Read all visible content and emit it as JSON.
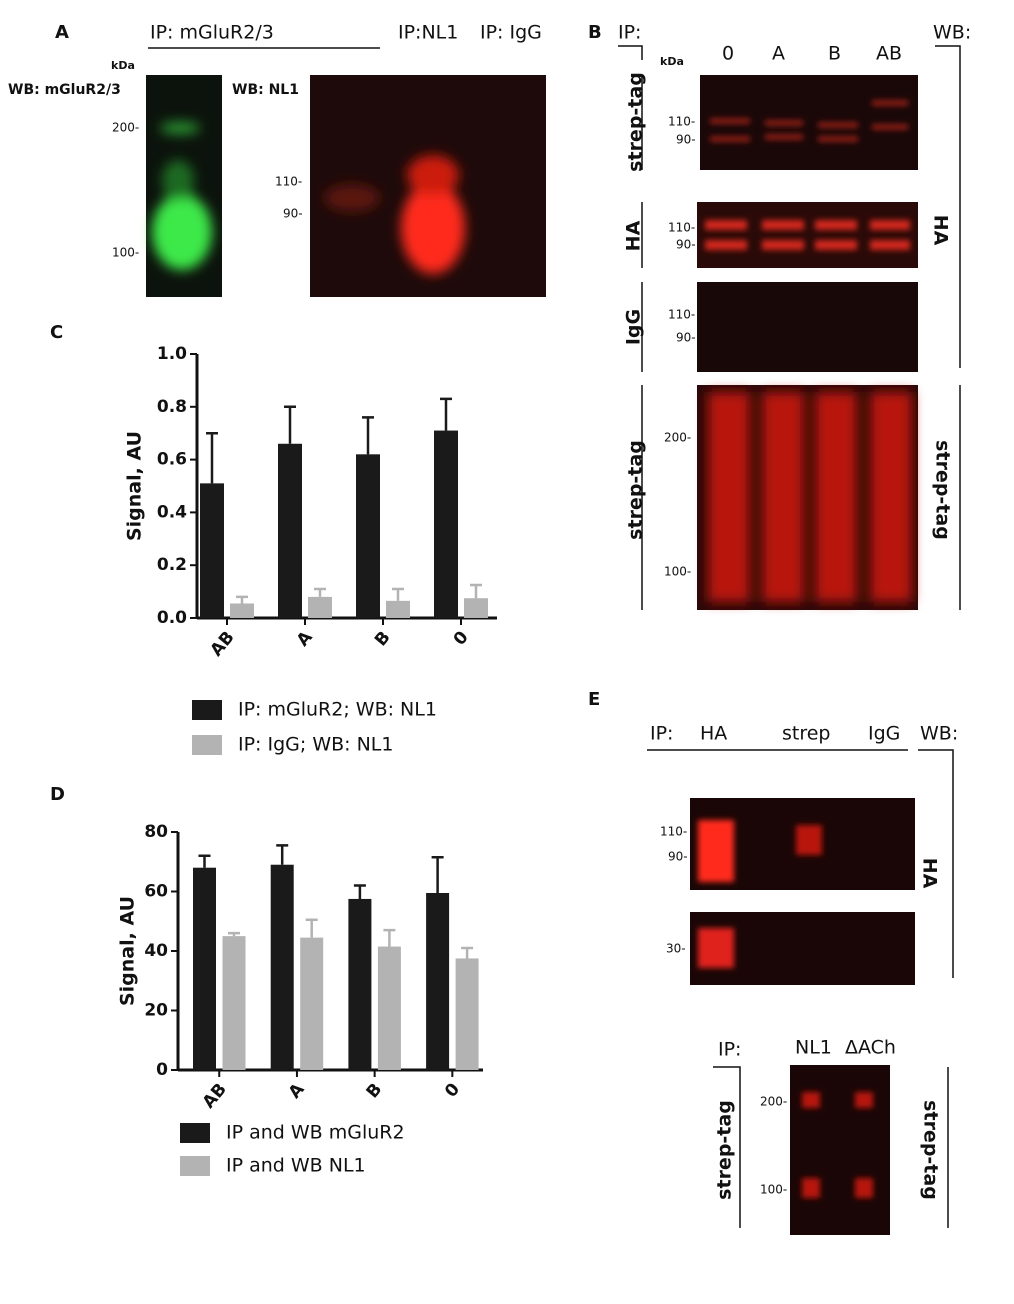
{
  "labels": [
    "A",
    "IP: mGluR2/3",
    "IP:NL1",
    "IP: IgG",
    "kDa",
    "WB: mGluR2/3",
    "WB: NL1",
    "200-",
    "100-",
    "110-",
    "90-",
    "B",
    "IP:",
    "kDa",
    "0",
    "A",
    "B",
    "AB",
    "WB:",
    "strep-tag",
    "110-",
    "90-",
    "HA",
    "110-",
    "90-",
    "IgG",
    "110-",
    "90-",
    "strep-tag",
    "200-",
    "100-",
    "HA",
    "strep-tag",
    "C",
    "D",
    "E",
    "IP:",
    "HA",
    "strep",
    "IgG",
    "WB:",
    "110-",
    "90-",
    "30-",
    "HA",
    "IP:",
    "NL1",
    "ΔACh",
    "strep-tag",
    "200-",
    "100-",
    "strep-tag"
  ],
  "chart_data": [
    {
      "type": "bar",
      "y_label": "Signal, AU",
      "categories": [
        "AB",
        "A",
        "B",
        "0"
      ],
      "series": [
        {
          "name": "IP: mGluR2; WB: NL1",
          "color": "#1a1a1a",
          "values": [
            0.51,
            0.66,
            0.62,
            0.71
          ],
          "errors": [
            0.19,
            0.14,
            0.14,
            0.12
          ]
        },
        {
          "name": "IP: IgG; WB: NL1",
          "color": "#b3b3b3",
          "values": [
            0.055,
            0.08,
            0.065,
            0.075
          ],
          "errors": [
            0.025,
            0.03,
            0.045,
            0.05
          ]
        }
      ],
      "ylim": [
        0,
        1
      ],
      "yticks": [
        {
          "value": 0,
          "label": "0.0"
        },
        0.2,
        0.4,
        0.6,
        0.8,
        {
          "value": 1,
          "label": "1.0"
        }
      ]
    },
    {
      "type": "bar",
      "y_label": "Signal, AU",
      "categories": [
        "AB",
        "A",
        "B",
        "0"
      ],
      "series": [
        {
          "name": "IP and WB mGluR2",
          "color": "#1a1a1a",
          "values": [
            68,
            69,
            57.5,
            59.5
          ],
          "errors": [
            4,
            6.5,
            4.5,
            12
          ]
        },
        {
          "name": "IP and WB NL1",
          "color": "#b3b3b3",
          "values": [
            45,
            44.5,
            41.5,
            37.5
          ],
          "errors": [
            1,
            6,
            5.5,
            3.5
          ]
        }
      ],
      "ylim": [
        0,
        80
      ],
      "yticks": [
        0,
        20,
        40,
        60,
        80
      ]
    }
  ]
}
